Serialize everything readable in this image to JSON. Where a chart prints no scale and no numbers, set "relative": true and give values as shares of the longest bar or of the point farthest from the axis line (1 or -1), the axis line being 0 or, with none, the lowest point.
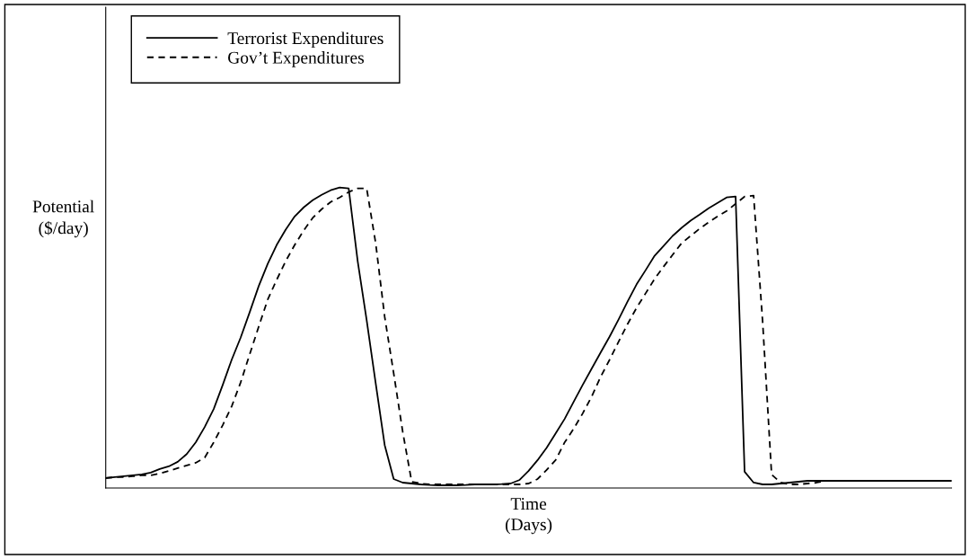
{
  "chart_data": {
    "type": "line",
    "relative": true,
    "xlabel": "Time\n(Days)",
    "ylabel": "Potential\n($/day)",
    "legend": "top left",
    "grid": false,
    "marker": "none",
    "categories": [
      null,
      null,
      null,
      null,
      null,
      null,
      null,
      null,
      null,
      null,
      null,
      null,
      null,
      null,
      null,
      null,
      null,
      null,
      null,
      null,
      null,
      null,
      null,
      null,
      null,
      null,
      null,
      null,
      null,
      null,
      null,
      null,
      null,
      null,
      null,
      null,
      null,
      null,
      null,
      null,
      null,
      null,
      null,
      null,
      null,
      null,
      null,
      null,
      null,
      null,
      null,
      null,
      null,
      null,
      null,
      null,
      null,
      null,
      null,
      null,
      null,
      null,
      null,
      null,
      null,
      null,
      null,
      null,
      null,
      null,
      null,
      null,
      null,
      null,
      null,
      null,
      null,
      null,
      null,
      null,
      null,
      null,
      null,
      null,
      null,
      null,
      null,
      null,
      null,
      null,
      null,
      null,
      null,
      null,
      null
    ],
    "series": [
      {
        "name": "Terrorist Expenditures",
        "color": "#000000",
        "line_style": "solid",
        "values": [
          0.033,
          0.036,
          0.039,
          0.042,
          0.045,
          0.051,
          0.063,
          0.072,
          0.087,
          0.113,
          0.152,
          0.203,
          0.263,
          0.343,
          0.427,
          0.501,
          0.585,
          0.672,
          0.746,
          0.809,
          0.86,
          0.904,
          0.934,
          0.958,
          0.976,
          0.991,
          1.0,
          0.997,
          0.755,
          0.558,
          0.349,
          0.143,
          0.03,
          0.018,
          0.015,
          0.012,
          0.01,
          0.009,
          0.009,
          0.009,
          0.01,
          0.012,
          0.012,
          0.012,
          0.013,
          0.015,
          0.027,
          0.057,
          0.093,
          0.134,
          0.182,
          0.23,
          0.287,
          0.343,
          0.397,
          0.451,
          0.504,
          0.561,
          0.621,
          0.678,
          0.725,
          0.773,
          0.806,
          0.839,
          0.866,
          0.89,
          0.91,
          0.931,
          0.949,
          0.967,
          0.97,
          0.054,
          0.018,
          0.012,
          0.012,
          0.015,
          0.018,
          0.021,
          0.024,
          0.024,
          0.024,
          0.024,
          0.024,
          0.024,
          0.024,
          0.024,
          0.024,
          0.024,
          0.024,
          0.024,
          0.024,
          0.024,
          0.024,
          0.024,
          0.024
        ]
      },
      {
        "name": "Gov’t Expenditures",
        "color": "#000000",
        "line_style": "dashed",
        "values": [
          0.033,
          0.036,
          0.036,
          0.039,
          0.042,
          0.042,
          0.048,
          0.057,
          0.066,
          0.075,
          0.084,
          0.101,
          0.152,
          0.209,
          0.272,
          0.352,
          0.445,
          0.537,
          0.627,
          0.693,
          0.755,
          0.809,
          0.857,
          0.899,
          0.928,
          0.952,
          0.967,
          0.985,
          0.997,
          0.997,
          0.815,
          0.57,
          0.382,
          0.188,
          0.021,
          0.015,
          0.012,
          0.012,
          0.012,
          0.012,
          0.012,
          0.012,
          0.012,
          0.012,
          0.012,
          0.012,
          0.012,
          0.015,
          0.03,
          0.06,
          0.093,
          0.152,
          0.197,
          0.248,
          0.304,
          0.37,
          0.427,
          0.487,
          0.546,
          0.6,
          0.648,
          0.696,
          0.737,
          0.776,
          0.815,
          0.839,
          0.863,
          0.884,
          0.904,
          0.922,
          0.946,
          0.97,
          0.973,
          0.555,
          0.045,
          0.018,
          0.012,
          0.012,
          0.015,
          0.018,
          0.024,
          0.024,
          0.024,
          0.024,
          0.024,
          0.024,
          0.024,
          0.024,
          0.024,
          0.024,
          0.024,
          0.024,
          0.024,
          0.024,
          0.024
        ]
      }
    ]
  }
}
